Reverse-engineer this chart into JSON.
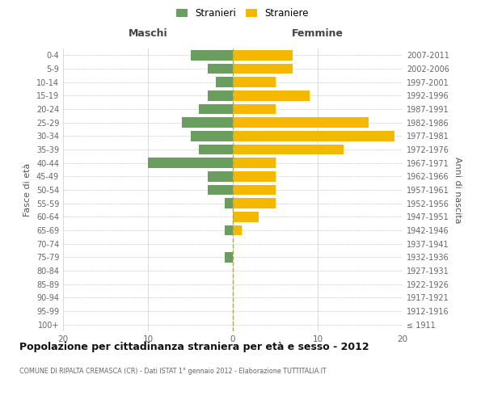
{
  "age_groups": [
    "100+",
    "95-99",
    "90-94",
    "85-89",
    "80-84",
    "75-79",
    "70-74",
    "65-69",
    "60-64",
    "55-59",
    "50-54",
    "45-49",
    "40-44",
    "35-39",
    "30-34",
    "25-29",
    "20-24",
    "15-19",
    "10-14",
    "5-9",
    "0-4"
  ],
  "birth_years": [
    "≤ 1911",
    "1912-1916",
    "1917-1921",
    "1922-1926",
    "1927-1931",
    "1932-1936",
    "1937-1941",
    "1942-1946",
    "1947-1951",
    "1952-1956",
    "1957-1961",
    "1962-1966",
    "1967-1971",
    "1972-1976",
    "1977-1981",
    "1982-1986",
    "1987-1991",
    "1992-1996",
    "1997-2001",
    "2002-2006",
    "2007-2011"
  ],
  "maschi": [
    0,
    0,
    0,
    0,
    0,
    1,
    0,
    1,
    0,
    1,
    3,
    3,
    10,
    4,
    5,
    6,
    4,
    3,
    2,
    3,
    5
  ],
  "femmine": [
    0,
    0,
    0,
    0,
    0,
    0,
    0,
    1,
    3,
    5,
    5,
    5,
    5,
    13,
    19,
    16,
    5,
    9,
    5,
    7,
    7
  ],
  "maschi_color": "#6a9e5e",
  "femmine_color": "#f5b800",
  "background_color": "#ffffff",
  "grid_color": "#cccccc",
  "title": "Popolazione per cittadinanza straniera per età e sesso - 2012",
  "subtitle": "COMUNE DI RIPALTA CREMASCA (CR) - Dati ISTAT 1° gennaio 2012 - Elaborazione TUTTITALIA.IT",
  "ylabel_left": "Fasce di età",
  "ylabel_right": "Anni di nascita",
  "xlabel_left": "Maschi",
  "xlabel_right": "Femmine",
  "legend_stranieri": "Stranieri",
  "legend_straniere": "Straniere",
  "xlim": 20,
  "bar_height": 0.75
}
